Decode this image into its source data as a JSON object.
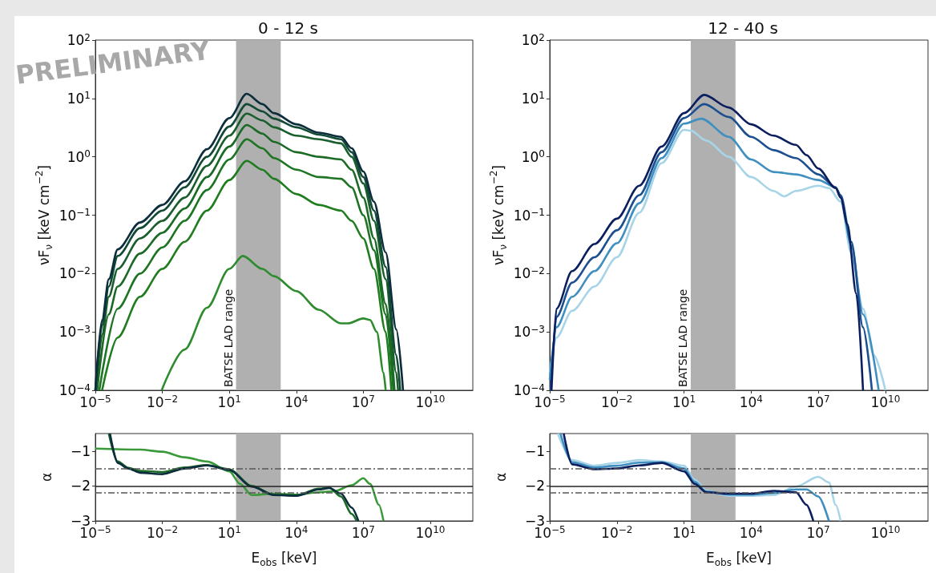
{
  "chart_data": [
    {
      "type": "line",
      "title": "0 - 12 s",
      "ylabel": "νF$_{ν}$ [keV cm$^{−2}$]",
      "log": "xy",
      "marker": "none",
      "annotations": [
        "PRELIMINARY"
      ],
      "xlim": [
        1e-05,
        800000000000.0
      ],
      "ylim": [
        0.0001,
        100
      ],
      "xticks": [
        {
          "value": 1e-05,
          "label": "10$^{−5}$"
        },
        {
          "value": 0.01,
          "label": "10$^{−2}$"
        },
        {
          "value": 10,
          "label": "10$^{1}$"
        },
        {
          "value": 10000.0,
          "label": "10$^{4}$"
        },
        {
          "value": 10000000.0,
          "label": "10$^{7}$"
        },
        {
          "value": 10000000000.0,
          "label": "10$^{10}$"
        }
      ],
      "yticks": [
        {
          "value": 0.0001,
          "label": "10$^{−4}$"
        },
        {
          "value": 0.001,
          "label": "10$^{−3}$"
        },
        {
          "value": 0.01,
          "label": "10$^{−2}$"
        },
        {
          "value": 0.1,
          "label": "10$^{−1}$"
        },
        {
          "value": 1,
          "label": "10$^{0}$"
        },
        {
          "value": 10,
          "label": "10$^{1}$"
        },
        {
          "value": 100,
          "label": "10$^{2}$"
        }
      ],
      "bands": [
        {
          "axis": "x",
          "from": 20,
          "to": 2000,
          "color": "#b0b0b0",
          "label": "BATSE LAD range"
        }
      ],
      "series": [
        {
          "color": "#2e8b2e",
          "x": [
            0.0093,
            0.1,
            1,
            10,
            40,
            300,
            1000,
            10000.0,
            100000.0,
            1000000.0,
            2000000.0,
            10000000.0,
            20000000.0,
            40000000.0,
            80000000.0,
            100000000.0
          ],
          "values": [
            0.0001,
            0.0005,
            0.0026,
            0.012,
            0.02,
            0.012,
            0.009,
            0.005,
            0.0024,
            0.0014,
            0.0014,
            0.0017,
            0.0016,
            0.001,
            0.0002,
            0.0001
          ]
        },
        {
          "color": "#1f7d20",
          "x": [
            2e-05,
            0.0001,
            0.001,
            0.01,
            0.1,
            1,
            10,
            60,
            300,
            1000,
            10000.0,
            100000.0,
            1000000.0,
            3000000.0,
            10000000.0,
            30000000.0,
            100000000.0,
            180000000.0
          ],
          "values": [
            0.0001,
            0.0008,
            0.004,
            0.012,
            0.035,
            0.12,
            0.4,
            0.85,
            0.6,
            0.42,
            0.23,
            0.15,
            0.12,
            0.08,
            0.04,
            0.012,
            0.001,
            0.0001
          ]
        },
        {
          "color": "#1d7422",
          "x": [
            1.5e-05,
            0.0001,
            0.001,
            0.01,
            0.1,
            1,
            10,
            60,
            300,
            1000,
            10000.0,
            100000.0,
            1000000.0,
            3000000.0,
            10000000.0,
            30000000.0,
            100000000.0,
            220000000.0
          ],
          "values": [
            0.0001,
            0.0025,
            0.01,
            0.028,
            0.08,
            0.27,
            0.9,
            2,
            1.4,
            0.95,
            0.6,
            0.45,
            0.42,
            0.3,
            0.1,
            0.025,
            0.002,
            0.0001
          ]
        },
        {
          "color": "#1b6a25",
          "x": [
            1.2e-05,
            4e-05,
            0.0001,
            0.001,
            0.01,
            0.1,
            1,
            10,
            60,
            300,
            1000,
            10000.0,
            100000.0,
            1000000.0,
            3000000.0,
            10000000.0,
            30000000.0,
            100000000.0,
            250000000.0
          ],
          "values": [
            0.0001,
            0.002,
            0.006,
            0.022,
            0.05,
            0.13,
            0.45,
            1.5,
            3.5,
            2.5,
            1.8,
            1.2,
            1,
            0.9,
            0.6,
            0.2,
            0.04,
            0.003,
            0.0001
          ]
        },
        {
          "color": "#195e2c",
          "x": [
            1.1e-05,
            2e-05,
            4e-05,
            0.0001,
            0.001,
            0.01,
            0.1,
            1,
            10,
            60,
            300,
            1000,
            10000.0,
            100000.0,
            1000000.0,
            3000000.0,
            10000000.0,
            30000000.0,
            100000000.0,
            300000000.0,
            360000000.0
          ],
          "values": [
            0.0001,
            0.0009,
            0.004,
            0.012,
            0.04,
            0.08,
            0.2,
            0.7,
            2.3,
            5.5,
            4.2,
            3.2,
            2.3,
            2,
            1.7,
            1,
            0.35,
            0.08,
            0.008,
            0.0002,
            0.0001
          ]
        },
        {
          "color": "#134a35",
          "x": [
            1e-05,
            2e-05,
            4e-05,
            0.0001,
            0.001,
            0.01,
            0.1,
            1,
            10,
            60,
            300,
            1000,
            10000.0,
            100000.0,
            1000000.0,
            3000000.0,
            10000000.0,
            30000000.0,
            100000000.0,
            300000000.0,
            450000000.0
          ],
          "values": [
            0.0001,
            0.0013,
            0.006,
            0.02,
            0.06,
            0.12,
            0.3,
            1,
            3.3,
            8,
            6,
            4.5,
            3.2,
            2.4,
            2,
            1.2,
            0.45,
            0.12,
            0.013,
            0.0004,
            0.0001
          ]
        },
        {
          "color": "#0b2d3c",
          "x": [
            1e-05,
            2e-05,
            4e-05,
            0.0001,
            0.001,
            0.01,
            0.1,
            1,
            10,
            60,
            300,
            1000,
            10000.0,
            100000.0,
            1000000.0,
            3000000.0,
            10000000.0,
            30000000.0,
            100000000.0,
            300000000.0,
            600000000.0
          ],
          "values": [
            0.0001,
            0.0016,
            0.008,
            0.026,
            0.075,
            0.15,
            0.38,
            1.35,
            4.6,
            12,
            8,
            5.6,
            3.6,
            2.6,
            2.2,
            1.4,
            0.56,
            0.17,
            0.023,
            0.0011,
            0.0001
          ]
        }
      ]
    },
    {
      "type": "line",
      "title": "12 - 40 s",
      "ylabel": "νF$_{ν}$ [keV cm$^{−2}$]",
      "log": "xy",
      "marker": "none",
      "xlim": [
        1e-05,
        800000000000.0
      ],
      "ylim": [
        0.0001,
        100
      ],
      "xticks": [
        {
          "value": 1e-05,
          "label": "10$^{−5}$"
        },
        {
          "value": 0.01,
          "label": "10$^{−2}$"
        },
        {
          "value": 10,
          "label": "10$^{1}$"
        },
        {
          "value": 10000.0,
          "label": "10$^{4}$"
        },
        {
          "value": 10000000.0,
          "label": "10$^{7}$"
        },
        {
          "value": 10000000000.0,
          "label": "10$^{10}$"
        }
      ],
      "yticks": [
        {
          "value": 0.0001,
          "label": "10$^{−4}$"
        },
        {
          "value": 0.001,
          "label": "10$^{−3}$"
        },
        {
          "value": 0.01,
          "label": "10$^{−2}$"
        },
        {
          "value": 0.1,
          "label": "10$^{−1}$"
        },
        {
          "value": 1,
          "label": "10$^{0}$"
        },
        {
          "value": 10,
          "label": "10$^{1}$"
        },
        {
          "value": 100,
          "label": "10$^{2}$"
        }
      ],
      "bands": [
        {
          "axis": "x",
          "from": 20,
          "to": 2000,
          "color": "#b0b0b0",
          "label": "BATSE LAD range"
        }
      ],
      "series": [
        {
          "color": "#a8d4e8",
          "x": [
            1e-05,
            2e-05,
            0.0001,
            0.001,
            0.01,
            0.1,
            1,
            10,
            20,
            100,
            1000,
            10000.0,
            100000.0,
            300000.0,
            1000000.0,
            10000000.0,
            30000000.0,
            100000000.0,
            300000000.0,
            1000000000.0,
            3000000000.0,
            10000000000.0
          ],
          "values": [
            0.0002,
            0.0008,
            0.0023,
            0.006,
            0.019,
            0.11,
            0.78,
            2.9,
            2.8,
            1.9,
            1,
            0.45,
            0.26,
            0.21,
            0.26,
            0.32,
            0.29,
            0.17,
            0.022,
            0.0025,
            0.0004,
            0.0001
          ]
        },
        {
          "color": "#3f8fc0",
          "x": [
            1e-05,
            2e-05,
            0.0001,
            0.001,
            0.01,
            0.1,
            1,
            10,
            60,
            1000,
            10000.0,
            100000.0,
            1000000.0,
            10000000.0,
            60000000.0,
            100000000.0,
            300000000.0,
            1000000000.0,
            5000000000.0
          ],
          "values": [
            0.00015,
            0.0012,
            0.004,
            0.011,
            0.033,
            0.16,
            0.95,
            3.7,
            4.5,
            2.2,
            0.9,
            0.55,
            0.5,
            0.4,
            0.3,
            0.2,
            0.03,
            0.002,
            0.0001
          ]
        },
        {
          "color": "#1c4f8f",
          "x": [
            1.1e-05,
            2e-05,
            0.0001,
            0.001,
            0.01,
            0.1,
            1,
            10,
            80,
            1000,
            10000.0,
            100000.0,
            1000000.0,
            10000000.0,
            60000000.0,
            100000000.0,
            300000000.0,
            1000000000.0,
            2500000000.0
          ],
          "values": [
            0.0001,
            0.0018,
            0.007,
            0.019,
            0.055,
            0.22,
            1.2,
            4.6,
            8,
            4.8,
            2.2,
            1.3,
            0.95,
            0.5,
            0.3,
            0.22,
            0.035,
            0.0012,
            0.0001
          ]
        },
        {
          "color": "#0b1f5e",
          "x": [
            1.2e-05,
            2e-05,
            0.0001,
            0.001,
            0.01,
            0.1,
            1,
            10,
            80,
            1000,
            10000.0,
            100000.0,
            1000000.0,
            3000000.0,
            10000000.0,
            60000000.0,
            100000000.0,
            200000000.0,
            500000000.0,
            1000000000.0
          ],
          "values": [
            0.0001,
            0.0025,
            0.011,
            0.032,
            0.087,
            0.32,
            1.5,
            5.6,
            11.5,
            7,
            3.6,
            2.3,
            1.6,
            1.07,
            0.63,
            0.29,
            0.2,
            0.07,
            0.0045,
            0.0001
          ]
        }
      ]
    },
    {
      "type": "line",
      "xlabel": "E$_{obs}$ [keV]",
      "ylabel": "α",
      "log": "x",
      "marker": "none",
      "xlim": [
        1e-05,
        800000000000.0
      ],
      "ylim": [
        -3,
        -0.5
      ],
      "xticks": [
        {
          "value": 1e-05,
          "label": "10$^{−5}$"
        },
        {
          "value": 0.01,
          "label": "10$^{−2}$"
        },
        {
          "value": 10,
          "label": "10$^{1}$"
        },
        {
          "value": 10000.0,
          "label": "10$^{4}$"
        },
        {
          "value": 10000000.0,
          "label": "10$^{7}$"
        },
        {
          "value": 10000000000.0,
          "label": "10$^{10}$"
        }
      ],
      "yticks": [
        {
          "value": -1,
          "label": "−1"
        },
        {
          "value": -2,
          "label": "−2"
        },
        {
          "value": -3,
          "label": "−3"
        }
      ],
      "bands": [
        {
          "axis": "x",
          "from": 20,
          "to": 2000,
          "color": "#b0b0b0"
        }
      ],
      "ref_lines": [
        {
          "axis": "y",
          "value": -1.5,
          "color": "#555555",
          "line_style": "dashed"
        },
        {
          "axis": "y",
          "value": -2,
          "color": "#222222",
          "line_style": "solid"
        },
        {
          "axis": "y",
          "value": -2.2,
          "color": "#555555",
          "line_style": "dashed"
        }
      ],
      "series": [
        {
          "color": "#3a9a3a",
          "x": [
            1e-05,
            0.001,
            0.01,
            0.1,
            1,
            10,
            30,
            100,
            1000,
            10000.0,
            100000.0,
            500000.0,
            3000000.0,
            10000000.0,
            20000000.0,
            50000000.0,
            80000000.0
          ],
          "values": [
            -0.93,
            -0.96,
            -1.02,
            -1.18,
            -1.3,
            -1.58,
            -1.94,
            -2.26,
            -2.22,
            -2.25,
            -2.18,
            -2.15,
            -1.98,
            -1.78,
            -1.94,
            -2.54,
            -3
          ]
        },
        {
          "color": "#1b6a25",
          "x": [
            4e-05,
            0.0001,
            0.0003,
            0.001,
            0.01,
            0.1,
            1,
            10,
            100,
            1000,
            10000.0,
            100000.0,
            300000.0,
            1000000.0,
            3000000.0,
            5000000.0
          ],
          "values": [
            -0.5,
            -1.3,
            -1.48,
            -1.57,
            -1.6,
            -1.47,
            -1.4,
            -1.52,
            -2,
            -2.25,
            -2.27,
            -2.08,
            -2.05,
            -2.3,
            -2.8,
            -3
          ]
        },
        {
          "color": "#0b2d3c",
          "x": [
            4.5e-05,
            0.0001,
            0.0003,
            0.001,
            0.01,
            0.1,
            1,
            10,
            100,
            1000,
            10000.0,
            100000.0,
            300000.0,
            1000000.0,
            3000000.0,
            6000000.0
          ],
          "values": [
            -0.5,
            -1.34,
            -1.5,
            -1.62,
            -1.66,
            -1.5,
            -1.41,
            -1.54,
            -2.02,
            -2.26,
            -2.28,
            -2.1,
            -2.06,
            -2.22,
            -2.62,
            -3
          ]
        }
      ]
    },
    {
      "type": "line",
      "xlabel": "E$_{obs}$ [keV]",
      "ylabel": "α",
      "log": "x",
      "marker": "none",
      "xlim": [
        1e-05,
        800000000000.0
      ],
      "ylim": [
        -3,
        -0.5
      ],
      "xticks": [
        {
          "value": 1e-05,
          "label": "10$^{−5}$"
        },
        {
          "value": 0.01,
          "label": "10$^{−2}$"
        },
        {
          "value": 10,
          "label": "10$^{1}$"
        },
        {
          "value": 10000.0,
          "label": "10$^{4}$"
        },
        {
          "value": 10000000.0,
          "label": "10$^{7}$"
        },
        {
          "value": 10000000000.0,
          "label": "10$^{10}$"
        }
      ],
      "yticks": [
        {
          "value": -1,
          "label": "−1"
        },
        {
          "value": -2,
          "label": "−2"
        },
        {
          "value": -3,
          "label": "−3"
        }
      ],
      "bands": [
        {
          "axis": "x",
          "from": 20,
          "to": 2000,
          "color": "#b0b0b0"
        }
      ],
      "ref_lines": [
        {
          "axis": "y",
          "value": -1.5,
          "color": "#555555",
          "line_style": "dashed"
        },
        {
          "axis": "y",
          "value": -2,
          "color": "#222222",
          "line_style": "solid"
        },
        {
          "axis": "y",
          "value": -2.2,
          "color": "#555555",
          "line_style": "dashed"
        }
      ],
      "series": [
        {
          "color": "#a8d4e8",
          "x": [
            2.3e-05,
            0.0001,
            0.001,
            0.01,
            0.1,
            1,
            10,
            30,
            100,
            1000,
            10000.0,
            100000.0,
            1000000.0,
            10000000.0,
            30000000.0,
            60000000.0,
            100000000.0
          ],
          "values": [
            -0.5,
            -1.26,
            -1.42,
            -1.34,
            -1.26,
            -1.3,
            -1.42,
            -1.82,
            -2.14,
            -2.28,
            -2.28,
            -2.26,
            -2.02,
            -1.74,
            -1.9,
            -2.54,
            -3
          ]
        },
        {
          "color": "#3f8fc0",
          "x": [
            3e-05,
            0.0001,
            0.001,
            0.01,
            0.1,
            1,
            10,
            30,
            100,
            1000,
            10000.0,
            100000.0,
            1000000.0,
            3000000.0,
            10000000.0,
            30000000.0
          ],
          "values": [
            -0.5,
            -1.32,
            -1.47,
            -1.42,
            -1.33,
            -1.32,
            -1.5,
            -1.88,
            -2.16,
            -2.25,
            -2.25,
            -2.2,
            -2.1,
            -2.1,
            -2.3,
            -3
          ]
        },
        {
          "color": "#0b1f5e",
          "x": [
            4.2e-05,
            0.0001,
            0.001,
            0.01,
            0.1,
            1,
            10,
            30,
            100,
            1000,
            10000.0,
            100000.0,
            1000000.0,
            3000000.0,
            6000000.0
          ],
          "values": [
            -0.5,
            -1.38,
            -1.52,
            -1.5,
            -1.41,
            -1.34,
            -1.58,
            -1.94,
            -2.18,
            -2.22,
            -2.22,
            -2.14,
            -2.18,
            -2.54,
            -3
          ]
        }
      ]
    }
  ]
}
